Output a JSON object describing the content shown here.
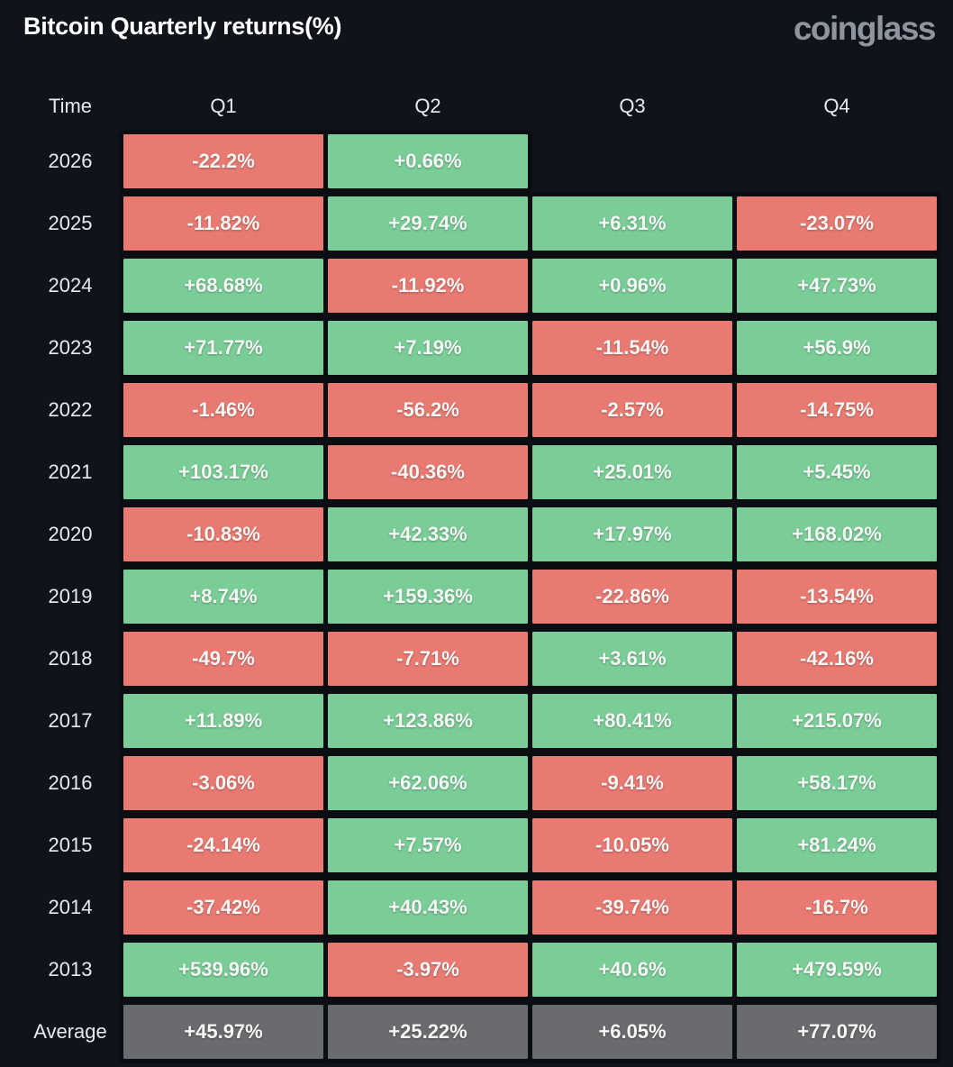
{
  "header": {
    "title": "Bitcoin Quarterly returns(%)",
    "logo": "coinglass"
  },
  "colors": {
    "background": "#10131a",
    "grid_line": "#0a0d12",
    "positive": "#7bcd98",
    "negative": "#e87a72",
    "average": "#696b6e"
  },
  "table": {
    "columns": [
      "Time",
      "Q1",
      "Q2",
      "Q3",
      "Q4"
    ],
    "rows": [
      {
        "label": "2026",
        "values": [
          "-22.2%",
          "+0.66%",
          "",
          ""
        ]
      },
      {
        "label": "2025",
        "values": [
          "-11.82%",
          "+29.74%",
          "+6.31%",
          "-23.07%"
        ]
      },
      {
        "label": "2024",
        "values": [
          "+68.68%",
          "-11.92%",
          "+0.96%",
          "+47.73%"
        ]
      },
      {
        "label": "2023",
        "values": [
          "+71.77%",
          "+7.19%",
          "-11.54%",
          "+56.9%"
        ]
      },
      {
        "label": "2022",
        "values": [
          "-1.46%",
          "-56.2%",
          "-2.57%",
          "-14.75%"
        ]
      },
      {
        "label": "2021",
        "values": [
          "+103.17%",
          "-40.36%",
          "+25.01%",
          "+5.45%"
        ]
      },
      {
        "label": "2020",
        "values": [
          "-10.83%",
          "+42.33%",
          "+17.97%",
          "+168.02%"
        ]
      },
      {
        "label": "2019",
        "values": [
          "+8.74%",
          "+159.36%",
          "-22.86%",
          "-13.54%"
        ]
      },
      {
        "label": "2018",
        "values": [
          "-49.7%",
          "-7.71%",
          "+3.61%",
          "-42.16%"
        ]
      },
      {
        "label": "2017",
        "values": [
          "+11.89%",
          "+123.86%",
          "+80.41%",
          "+215.07%"
        ]
      },
      {
        "label": "2016",
        "values": [
          "-3.06%",
          "+62.06%",
          "-9.41%",
          "+58.17%"
        ]
      },
      {
        "label": "2015",
        "values": [
          "-24.14%",
          "+7.57%",
          "-10.05%",
          "+81.24%"
        ]
      },
      {
        "label": "2014",
        "values": [
          "-37.42%",
          "+40.43%",
          "-39.74%",
          "-16.7%"
        ]
      },
      {
        "label": "2013",
        "values": [
          "+539.96%",
          "-3.97%",
          "+40.6%",
          "+479.59%"
        ]
      },
      {
        "label": "Average",
        "values": [
          "+45.97%",
          "+25.22%",
          "+6.05%",
          "+77.07%"
        ],
        "is_average": true
      }
    ]
  },
  "chart_data": {
    "type": "table",
    "title": "Bitcoin Quarterly returns(%)",
    "columns": [
      "Q1",
      "Q2",
      "Q3",
      "Q4"
    ],
    "row_labels": [
      "2026",
      "2025",
      "2024",
      "2023",
      "2022",
      "2021",
      "2020",
      "2019",
      "2018",
      "2017",
      "2016",
      "2015",
      "2014",
      "2013",
      "Average"
    ],
    "values_pct": [
      [
        -22.2,
        0.66,
        null,
        null
      ],
      [
        -11.82,
        29.74,
        6.31,
        -23.07
      ],
      [
        68.68,
        -11.92,
        0.96,
        47.73
      ],
      [
        71.77,
        7.19,
        -11.54,
        56.9
      ],
      [
        -1.46,
        -56.2,
        -2.57,
        -14.75
      ],
      [
        103.17,
        -40.36,
        25.01,
        5.45
      ],
      [
        -10.83,
        42.33,
        17.97,
        168.02
      ],
      [
        8.74,
        159.36,
        -22.86,
        -13.54
      ],
      [
        -49.7,
        -7.71,
        3.61,
        -42.16
      ],
      [
        11.89,
        123.86,
        80.41,
        215.07
      ],
      [
        -3.06,
        62.06,
        -9.41,
        58.17
      ],
      [
        -24.14,
        7.57,
        -10.05,
        81.24
      ],
      [
        -37.42,
        40.43,
        -39.74,
        -16.7
      ],
      [
        539.96,
        -3.97,
        40.6,
        479.59
      ],
      [
        45.97,
        25.22,
        6.05,
        77.07
      ]
    ],
    "color_coding": "green = positive return, red = negative return, gray = average row"
  }
}
